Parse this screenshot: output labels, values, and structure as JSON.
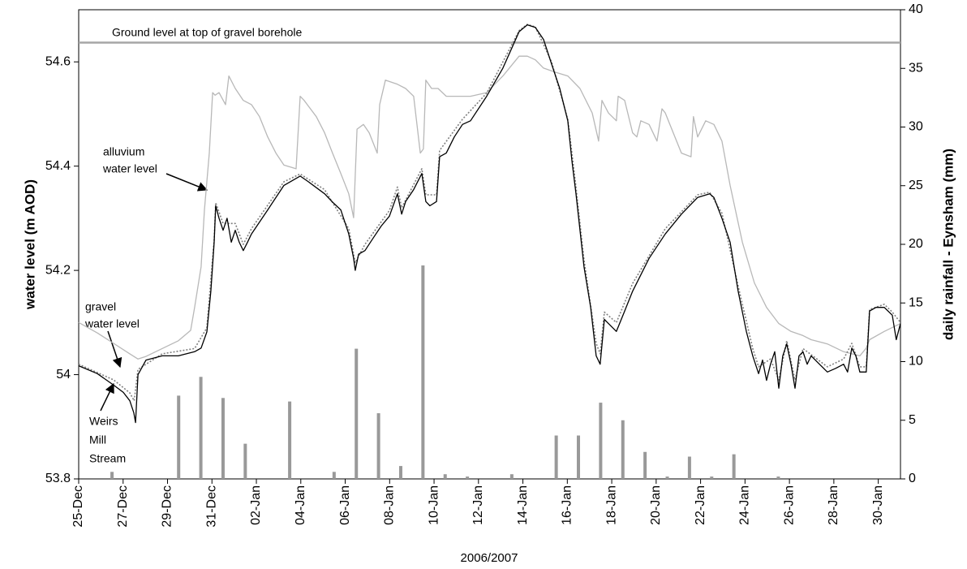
{
  "chart_data": {
    "type": "line",
    "x_label": "2006/2007",
    "y_label": "water level (m AOD)",
    "y2_label": "daily rainfall - Eynsham (mm)",
    "xlim": [
      0,
      37
    ],
    "xticks": [
      {
        "value": 0,
        "label": "25-Dec"
      },
      {
        "value": 2,
        "label": "27-Dec"
      },
      {
        "value": 4,
        "label": "29-Dec"
      },
      {
        "value": 6,
        "label": "31-Dec"
      },
      {
        "value": 8,
        "label": "02-Jan"
      },
      {
        "value": 10,
        "label": "04-Jan"
      },
      {
        "value": 12,
        "label": "06-Jan"
      },
      {
        "value": 14,
        "label": "08-Jan"
      },
      {
        "value": 16,
        "label": "10-Jan"
      },
      {
        "value": 18,
        "label": "12-Jan"
      },
      {
        "value": 20,
        "label": "14-Jan"
      },
      {
        "value": 22,
        "label": "16-Jan"
      },
      {
        "value": 24,
        "label": "18-Jan"
      },
      {
        "value": 26,
        "label": "20-Jan"
      },
      {
        "value": 28,
        "label": "22-Jan"
      },
      {
        "value": 30,
        "label": "24-Jan"
      },
      {
        "value": 32,
        "label": "26-Jan"
      },
      {
        "value": 34,
        "label": "28-Jan"
      },
      {
        "value": 36,
        "label": "30-Jan"
      }
    ],
    "ylim": [
      53.8,
      54.7
    ],
    "yticks": [
      53.8,
      54,
      54.2,
      54.4,
      54.6
    ],
    "y2lim": [
      0,
      40
    ],
    "y2ticks": [
      0,
      5,
      10,
      15,
      20,
      25,
      30,
      35,
      40
    ],
    "hlines": [
      {
        "value": 54.637,
        "label": "Ground level at top of gravel borehole",
        "color": "#a6a6a6"
      }
    ],
    "annotations": [
      {
        "lines": [
          "alluvium",
          "water level"
        ]
      },
      {
        "lines": [
          "gravel",
          "water level"
        ]
      },
      {
        "lines": [
          "Weirs",
          "Mill",
          "Stream"
        ]
      }
    ],
    "series": [
      {
        "name": "alluvium water level",
        "type": "line",
        "color": "#b8b8b8",
        "dash": false,
        "x": [
          0,
          0.84,
          1.57,
          2.3,
          2.67,
          3.03,
          3.76,
          4.49,
          5.04,
          5.22,
          5.51,
          5.66,
          5.88,
          6.03,
          6.14,
          6.32,
          6.61,
          6.76,
          7.05,
          7.41,
          7.78,
          8.14,
          8.51,
          8.88,
          9.24,
          9.79,
          9.97,
          10.15,
          10.7,
          11.07,
          11.43,
          11.8,
          12.16,
          12.38,
          12.53,
          12.82,
          13.08,
          13.44,
          13.55,
          13.81,
          14.35,
          14.72,
          15.08,
          15.38,
          15.52,
          15.63,
          15.89,
          16.18,
          16.55,
          17.09,
          17.64,
          18.37,
          19.1,
          19.83,
          20.2,
          20.56,
          20.93,
          21.48,
          22.02,
          22.57,
          23.12,
          23.41,
          23.56,
          23.85,
          24.21,
          24.29,
          24.58,
          24.94,
          25.13,
          25.31,
          25.68,
          26.04,
          26.26,
          26.41,
          26.77,
          27.14,
          27.57,
          27.68,
          27.87,
          28.23,
          28.6,
          28.96,
          29.33,
          29.88,
          30.42,
          30.97,
          31.52,
          32.07,
          32.61,
          32.98,
          33.71,
          34.44,
          35.17,
          35.46,
          35.61,
          36.27,
          37
        ],
        "values": [
          54.1,
          54.08,
          54.06,
          54.04,
          54.03,
          54.035,
          54.05,
          54.065,
          54.085,
          54.129,
          54.207,
          54.316,
          54.425,
          54.541,
          54.536,
          54.541,
          54.518,
          54.573,
          54.549,
          54.526,
          54.518,
          54.495,
          54.456,
          54.425,
          54.402,
          54.395,
          54.534,
          54.526,
          54.495,
          54.464,
          54.425,
          54.386,
          54.347,
          54.301,
          54.471,
          54.48,
          54.464,
          54.425,
          54.518,
          54.565,
          54.557,
          54.549,
          54.534,
          54.425,
          54.433,
          54.565,
          54.549,
          54.549,
          54.534,
          54.534,
          54.534,
          54.541,
          54.573,
          54.611,
          54.611,
          54.604,
          54.588,
          54.58,
          54.573,
          54.549,
          54.502,
          54.448,
          54.526,
          54.502,
          54.487,
          54.534,
          54.526,
          54.464,
          54.456,
          54.487,
          54.48,
          54.448,
          54.51,
          54.502,
          54.464,
          54.425,
          54.418,
          54.495,
          54.456,
          54.487,
          54.48,
          54.448,
          54.363,
          54.254,
          54.176,
          54.129,
          54.098,
          54.083,
          54.075,
          54.067,
          54.059,
          54.044,
          54.036,
          54.051,
          54.067,
          54.083,
          54.098
        ]
      },
      {
        "name": "Weirs Mill Stream",
        "type": "line",
        "color": "#7f7f7f",
        "dash": true,
        "x": [
          0,
          1.57,
          2.3,
          2.5,
          2.67,
          3.76,
          5.22,
          5.77,
          6.1,
          6.17,
          6.5,
          7.05,
          7.41,
          7.78,
          9.24,
          9.97,
          11.07,
          12.16,
          12.45,
          12.89,
          13.99,
          14.35,
          14.54,
          15.45,
          15.63,
          16.11,
          16.25,
          17.28,
          18.37,
          19.83,
          20.2,
          20.56,
          21.29,
          22.02,
          22.39,
          22.75,
          23.3,
          23.48,
          23.67,
          24.21,
          24.94,
          26.41,
          27.87,
          28.41,
          28.96,
          29.69,
          30.35,
          30.61,
          31.15,
          31.52,
          31.88,
          32.25,
          32.61,
          33.71,
          34.44,
          34.81,
          35.17,
          35.46,
          35.61,
          36.27,
          36.63,
          37
        ],
        "values": [
          54.02,
          53.99,
          53.965,
          53.95,
          54.01,
          54.04,
          54.05,
          54.09,
          54.26,
          54.33,
          54.29,
          54.29,
          54.25,
          54.28,
          54.37,
          54.385,
          54.355,
          54.28,
          54.215,
          54.25,
          54.315,
          54.36,
          54.32,
          54.395,
          54.345,
          54.345,
          54.43,
          54.49,
          54.54,
          54.66,
          54.672,
          54.667,
          54.6,
          54.49,
          54.36,
          54.22,
          54.06,
          54.04,
          54.12,
          54.1,
          54.175,
          54.28,
          54.345,
          54.35,
          54.31,
          54.17,
          54.05,
          54.015,
          54.03,
          53.99,
          54.065,
          53.99,
          54.05,
          54.015,
          54.03,
          54.06,
          54.015,
          54.015,
          54.125,
          54.135,
          54.12,
          54.1
        ]
      },
      {
        "name": "gravel water level",
        "type": "line",
        "color": "#000000",
        "dash": false,
        "x": [
          0,
          0.84,
          1.57,
          2.01,
          2.3,
          2.48,
          2.56,
          2.67,
          3.03,
          3.76,
          4.49,
          5.22,
          5.51,
          5.77,
          5.95,
          6.1,
          6.17,
          6.32,
          6.5,
          6.68,
          6.87,
          7.05,
          7.23,
          7.41,
          7.6,
          7.78,
          8.51,
          9.24,
          9.97,
          10.34,
          11.07,
          11.43,
          11.8,
          12.16,
          12.38,
          12.45,
          12.6,
          12.89,
          13.26,
          13.62,
          13.99,
          14.35,
          14.54,
          14.72,
          15.08,
          15.45,
          15.63,
          15.81,
          16.11,
          16.25,
          16.55,
          16.91,
          17.28,
          17.64,
          18.37,
          19.1,
          19.83,
          20.2,
          20.56,
          20.93,
          21.29,
          21.66,
          22.02,
          22.21,
          22.39,
          22.75,
          23.05,
          23.3,
          23.48,
          23.67,
          23.85,
          24.21,
          24.58,
          24.94,
          25.68,
          26.41,
          27.14,
          27.87,
          28.41,
          28.6,
          28.96,
          29.33,
          29.69,
          30.06,
          30.35,
          30.61,
          30.79,
          30.97,
          31.15,
          31.34,
          31.52,
          31.7,
          31.88,
          32.07,
          32.25,
          32.43,
          32.61,
          32.8,
          32.98,
          33.35,
          33.71,
          34.08,
          34.44,
          34.62,
          34.81,
          34.99,
          35.17,
          35.46,
          35.61,
          35.9,
          36.27,
          36.63,
          36.81,
          37
        ],
        "values": [
          54.017,
          54.002,
          53.98,
          53.966,
          53.95,
          53.927,
          53.908,
          54,
          54.028,
          54.036,
          54.036,
          54.044,
          54.051,
          54.082,
          54.16,
          54.254,
          54.324,
          54.3,
          54.277,
          54.3,
          54.254,
          54.277,
          54.254,
          54.238,
          54.254,
          54.27,
          54.316,
          54.363,
          54.381,
          54.37,
          54.347,
          54.331,
          54.316,
          54.27,
          54.223,
          54.2,
          54.231,
          54.238,
          54.262,
          54.285,
          54.304,
          54.347,
          54.308,
          54.332,
          54.355,
          54.386,
          54.332,
          54.324,
          54.332,
          54.418,
          54.425,
          54.456,
          54.48,
          54.487,
          54.534,
          54.588,
          54.658,
          54.671,
          54.666,
          54.643,
          54.596,
          54.549,
          54.487,
          54.409,
          54.347,
          54.207,
          54.129,
          54.036,
          54.02,
          54.106,
          54.098,
          54.083,
          54.122,
          54.16,
          54.223,
          54.27,
          54.308,
          54.34,
          54.347,
          54.34,
          54.3,
          54.254,
          54.16,
          54.083,
          54.036,
          54.002,
          54.028,
          53.989,
          54.02,
          54.044,
          53.974,
          54.036,
          54.059,
          54.02,
          53.974,
          54.036,
          54.044,
          54.02,
          54.036,
          54.02,
          54.005,
          54.012,
          54.02,
          54.005,
          54.051,
          54.036,
          54.005,
          54.005,
          54.122,
          54.129,
          54.129,
          54.114,
          54.067,
          54.098
        ]
      },
      {
        "name": "daily rainfall - Eynsham",
        "type": "bar",
        "axis": "y2",
        "color": "#999999",
        "x": [
          1.5,
          4.5,
          5.5,
          6.5,
          7.5,
          9.5,
          11.5,
          12.5,
          13.5,
          14.5,
          15.5,
          16.5,
          17.5,
          19.5,
          21.5,
          22.5,
          23.5,
          24.5,
          25.5,
          26.5,
          27.5,
          28.5,
          29.5,
          31.5
        ],
        "values": [
          0.6,
          7.1,
          8.7,
          6.9,
          3.0,
          6.6,
          0.6,
          11.1,
          5.6,
          1.1,
          18.2,
          0.4,
          0.2,
          0.4,
          3.7,
          3.7,
          6.5,
          5.0,
          2.3,
          0.2,
          1.9,
          0.2,
          2.1,
          0.2
        ]
      }
    ]
  }
}
